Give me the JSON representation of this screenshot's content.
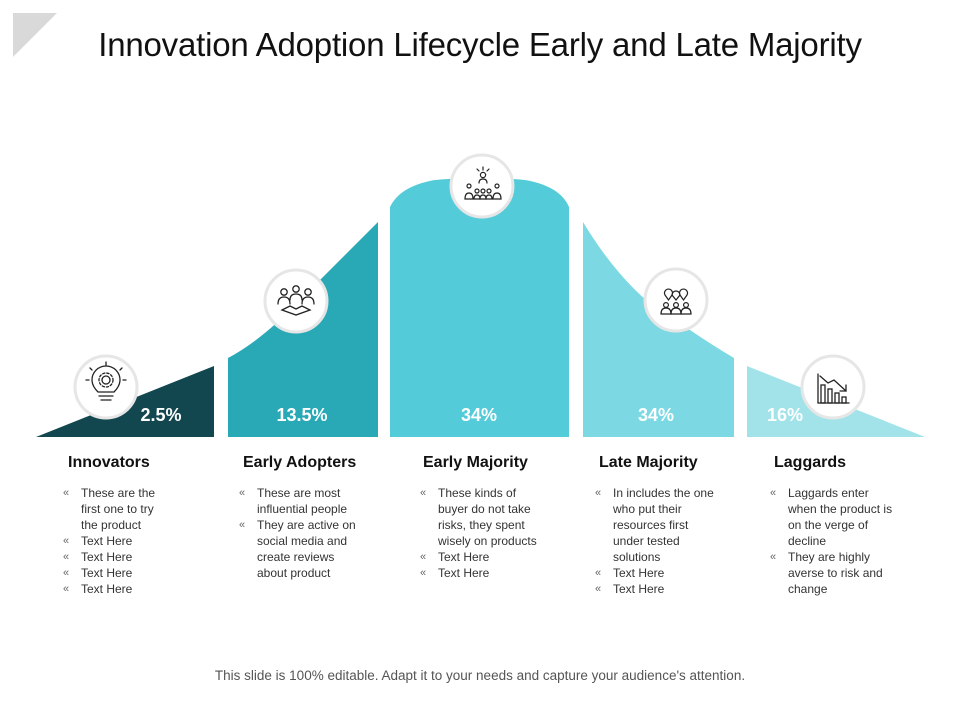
{
  "title": "Innovation Adoption Lifecycle Early and Late Majority",
  "stages": [
    {
      "name": "Innovators",
      "percent": "2.5%",
      "icon": "lightbulb-gear-icon",
      "color": "#13474f",
      "bullets": [
        "These are the first one to try the product",
        "Text Here",
        "Text Here",
        "Text Here",
        "Text Here"
      ]
    },
    {
      "name": "Early Adopters",
      "percent": "13.5%",
      "icon": "team-handshake-icon",
      "color": "#29a9b6",
      "bullets": [
        "These are most influential people",
        "They are active on social media and create reviews about product"
      ]
    },
    {
      "name": "Early Majority",
      "percent": "34%",
      "icon": "team-hierarchy-icon",
      "color": "#54cbd9",
      "bullets": [
        "These kinds of buyer do not take risks, they spent wisely on products",
        "Text Here",
        "Text Here"
      ]
    },
    {
      "name": "Late Majority",
      "percent": "34%",
      "icon": "people-location-icon",
      "color": "#7cd9e3",
      "bullets": [
        "In includes the one who put their resources first under tested solutions",
        "Text Here",
        "Text Here"
      ]
    },
    {
      "name": "Laggards",
      "percent": "16%",
      "icon": "declining-bar-chart-icon",
      "color": "#a2e3ea",
      "bullets": [
        "Laggards enter when the product is on the verge of decline",
        "They are highly averse to risk and change"
      ]
    }
  ],
  "footer": "This slide is 100% editable. Adapt it to your needs and capture your audience's attention."
}
